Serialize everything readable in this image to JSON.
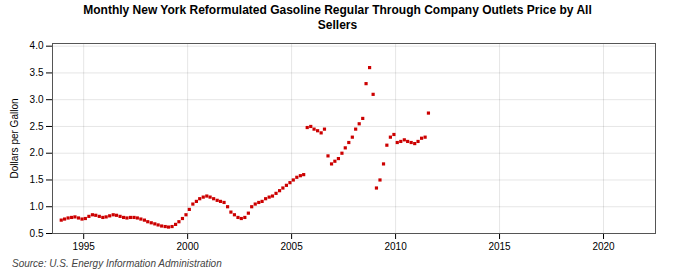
{
  "chart_data": {
    "type": "scatter",
    "title": "Monthly New York Reformulated Gasoline Regular Through Company Outlets Price by All\nSellers",
    "ylabel": "Dollars per Gallon",
    "caption": "Source: U.S. Energy Information Administration",
    "color": "#cc0000",
    "marker": "square",
    "grid": true,
    "xlim": [
      1993.5,
      2022.5
    ],
    "ylim": [
      0.5,
      4.05
    ],
    "xticks": [
      1995,
      2000,
      2005,
      2010,
      2015,
      2020
    ],
    "yticks": [
      0.5,
      {
        "value": 1.0,
        "label": "1.0"
      },
      1.5,
      {
        "value": 2.0,
        "label": "2.0"
      },
      2.5,
      {
        "value": 3.0,
        "label": "3.0"
      },
      3.5,
      {
        "value": 4.0,
        "label": "4.0"
      }
    ],
    "x": [
      1993.92,
      1994.08,
      1994.25,
      1994.42,
      1994.58,
      1994.75,
      1994.92,
      1995.08,
      1995.25,
      1995.42,
      1995.58,
      1995.75,
      1995.92,
      1996.08,
      1996.25,
      1996.42,
      1996.58,
      1996.75,
      1996.92,
      1997.08,
      1997.25,
      1997.42,
      1997.58,
      1997.75,
      1997.92,
      1998.08,
      1998.25,
      1998.42,
      1998.58,
      1998.75,
      1998.92,
      1999.08,
      1999.25,
      1999.42,
      1999.58,
      1999.75,
      1999.92,
      2000.08,
      2000.25,
      2000.42,
      2000.58,
      2000.75,
      2000.92,
      2001.08,
      2001.25,
      2001.42,
      2001.58,
      2001.75,
      2001.92,
      2002.08,
      2002.25,
      2002.42,
      2002.58,
      2002.75,
      2002.92,
      2003.08,
      2003.25,
      2003.42,
      2003.58,
      2003.75,
      2003.92,
      2004.08,
      2004.25,
      2004.42,
      2004.58,
      2004.75,
      2004.92,
      2005.08,
      2005.25,
      2005.42,
      2005.58,
      2005.75,
      2005.92,
      2006.08,
      2006.25,
      2006.42,
      2006.58,
      2006.75,
      2006.92,
      2007.08,
      2007.25,
      2007.42,
      2007.58,
      2007.75,
      2007.92,
      2008.08,
      2008.25,
      2008.42,
      2008.58,
      2008.75,
      2008.92,
      2009.08,
      2009.25,
      2009.42,
      2009.58,
      2009.75,
      2009.92,
      2010.08,
      2010.25,
      2010.42,
      2010.58,
      2010.75,
      2010.92,
      2011.08,
      2011.25,
      2011.42,
      2011.58
    ],
    "values": [
      0.75,
      0.77,
      0.79,
      0.8,
      0.81,
      0.79,
      0.77,
      0.78,
      0.82,
      0.85,
      0.84,
      0.82,
      0.8,
      0.81,
      0.83,
      0.85,
      0.84,
      0.82,
      0.8,
      0.79,
      0.8,
      0.8,
      0.79,
      0.77,
      0.75,
      0.72,
      0.7,
      0.68,
      0.66,
      0.64,
      0.63,
      0.62,
      0.63,
      0.67,
      0.72,
      0.78,
      0.85,
      0.95,
      1.05,
      1.1,
      1.15,
      1.18,
      1.2,
      1.18,
      1.15,
      1.12,
      1.1,
      1.08,
      1.0,
      0.9,
      0.85,
      0.8,
      0.78,
      0.8,
      0.88,
      1.0,
      1.05,
      1.08,
      1.1,
      1.15,
      1.18,
      1.2,
      1.25,
      1.3,
      1.35,
      1.4,
      1.45,
      1.5,
      1.55,
      1.58,
      1.6,
      2.48,
      2.5,
      2.45,
      2.42,
      2.38,
      2.45,
      1.95,
      1.8,
      1.85,
      1.9,
      2.0,
      2.1,
      2.2,
      2.3,
      2.45,
      2.55,
      2.65,
      3.3,
      3.6,
      3.1,
      1.35,
      1.5,
      1.8,
      2.15,
      2.3,
      2.35,
      2.2,
      2.22,
      2.25,
      2.22,
      2.2,
      2.18,
      2.22,
      2.28,
      2.3,
      2.75
    ]
  }
}
